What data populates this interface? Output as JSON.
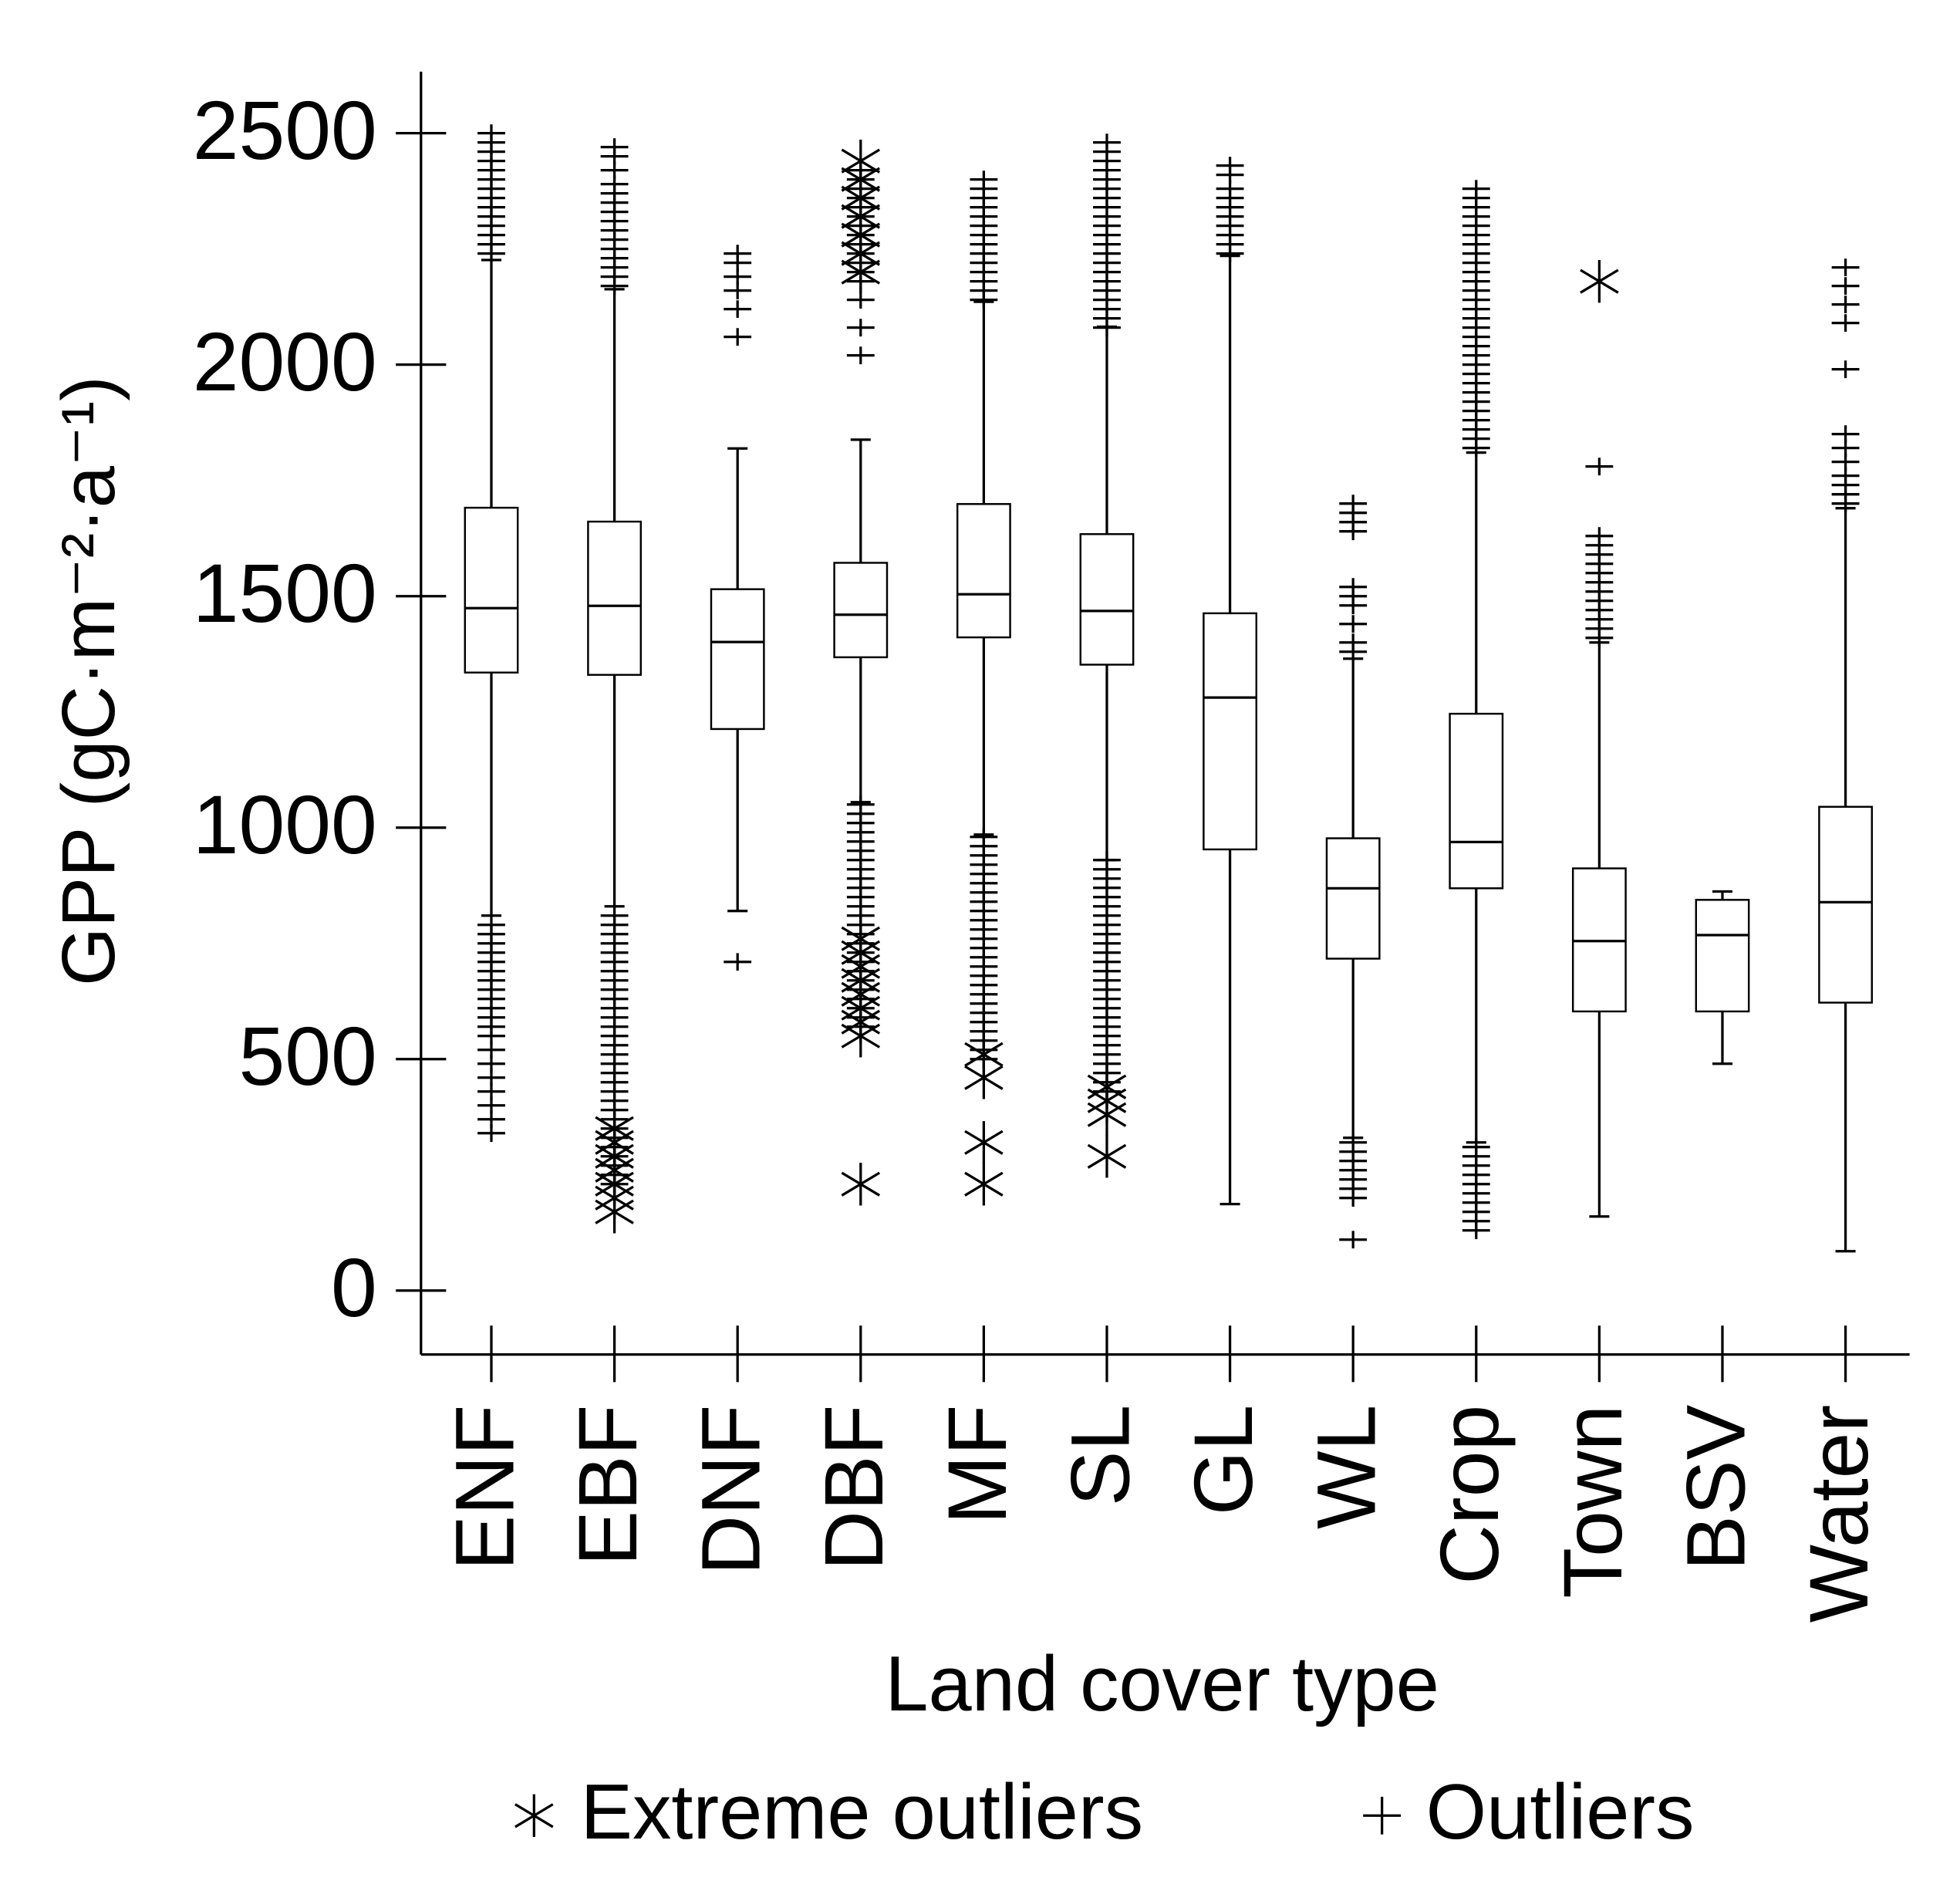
{
  "chart_data": {
    "type": "box",
    "y_label": "GPP (gC·m⁻²·a⁻¹)",
    "x_label": "Land cover type",
    "legend": [
      "Extreme outliers",
      "Outliers"
    ],
    "categories": [
      "ENF",
      "EBF",
      "DNF",
      "DBF",
      "MF",
      "SL",
      "GL",
      "WL",
      "Crop",
      "Town",
      "BSV",
      "Water"
    ],
    "ylim": [
      -138,
      2633
    ],
    "yticks": [
      0,
      500,
      1000,
      1500,
      2000,
      2500
    ],
    "boxes": [
      {
        "low": 810,
        "q1": 1335,
        "median": 1474,
        "q3": 1691,
        "high": 2226,
        "outliers": [
          2240,
          2260,
          2280,
          2300,
          2320,
          2340,
          2360,
          2380,
          2400,
          2420,
          2440,
          2460,
          2480,
          2500,
          340,
          370,
          400,
          430,
          460,
          490,
          520,
          550,
          570,
          590,
          610,
          630,
          650,
          670,
          690,
          710,
          730,
          750,
          770,
          790
        ],
        "extreme_outliers": []
      },
      {
        "low": 830,
        "q1": 1330,
        "median": 1479,
        "q3": 1661,
        "high": 2163,
        "outliers": [
          2170,
          2190,
          2210,
          2230,
          2250,
          2270,
          2290,
          2310,
          2330,
          2350,
          2370,
          2390,
          2420,
          2450,
          2470,
          230,
          250,
          270,
          290,
          310,
          330,
          350,
          370,
          390,
          410,
          430,
          450,
          470,
          490,
          510,
          530,
          550,
          570,
          590,
          610,
          630,
          650,
          670,
          690,
          710,
          730,
          750,
          770,
          790,
          810
        ],
        "extreme_outliers": [
          170,
          200,
          230,
          260,
          290,
          320,
          350
        ]
      },
      {
        "low": 820,
        "q1": 1213,
        "median": 1401,
        "q3": 1515,
        "high": 1819,
        "outliers": [
          2060,
          2120,
          2160,
          2190,
          2220,
          2240,
          710
        ],
        "extreme_outliers": []
      },
      {
        "low": 1055,
        "q1": 1368,
        "median": 1460,
        "q3": 1572,
        "high": 1838,
        "outliers": [
          2020,
          2080,
          2140,
          2180,
          2200,
          2220,
          2240,
          2260,
          2280,
          2300,
          2320,
          2340,
          2360,
          2380,
          2400,
          2420,
          570,
          590,
          610,
          630,
          650,
          670,
          690,
          710,
          730,
          750,
          770,
          790,
          810,
          830,
          850,
          870,
          890,
          910,
          930,
          950,
          970,
          990,
          1010,
          1030,
          1050
        ],
        "extreme_outliers": [
          2200,
          2240,
          2280,
          2320,
          2360,
          2400,
          2440,
          550,
          580,
          610,
          640,
          670,
          700,
          730,
          760,
          230
        ]
      },
      {
        "low": 985,
        "q1": 1411,
        "median": 1504,
        "q3": 1699,
        "high": 2136,
        "outliers": [
          2140,
          2160,
          2180,
          2200,
          2220,
          2240,
          2260,
          2280,
          2300,
          2320,
          2340,
          2360,
          2380,
          2400,
          500,
          520,
          540,
          560,
          580,
          600,
          620,
          640,
          660,
          680,
          700,
          720,
          740,
          760,
          780,
          800,
          820,
          840,
          860,
          880,
          900,
          920,
          940,
          960,
          980
        ],
        "extreme_outliers": [
          230,
          320,
          460,
          510
        ]
      },
      {
        "low": 930,
        "q1": 1352,
        "median": 1468,
        "q3": 1634,
        "high": 2082,
        "outliers": [
          2080,
          2100,
          2120,
          2140,
          2160,
          2180,
          2200,
          2220,
          2240,
          2260,
          2280,
          2300,
          2320,
          2340,
          2360,
          2380,
          2400,
          2420,
          2440,
          2460,
          2480,
          430,
          450,
          470,
          490,
          510,
          530,
          550,
          570,
          590,
          610,
          630,
          650,
          670,
          690,
          710,
          730,
          750,
          770,
          790,
          810,
          830,
          850,
          870,
          890,
          910,
          930
        ],
        "extreme_outliers": [
          290,
          380,
          410,
          440
        ]
      },
      {
        "low": 187,
        "q1": 953,
        "median": 1281,
        "q3": 1463,
        "high": 2235,
        "outliers": [
          2240,
          2260,
          2280,
          2300,
          2320,
          2340,
          2360,
          2380,
          2410,
          2430
        ],
        "extreme_outliers": []
      },
      {
        "low": 330,
        "q1": 717,
        "median": 869,
        "q3": 977,
        "high": 1365,
        "outliers": [
          1380,
          1400,
          1440,
          1480,
          1500,
          1520,
          1640,
          1660,
          1680,
          1700,
          110,
          200,
          220,
          240,
          260,
          280,
          300,
          320
        ],
        "extreme_outliers": []
      },
      {
        "low": 320,
        "q1": 869,
        "median": 969,
        "q3": 1246,
        "high": 1810,
        "outliers": [
          1820,
          1840,
          1860,
          1880,
          1900,
          1920,
          1940,
          1960,
          1980,
          2000,
          2020,
          2040,
          2060,
          2080,
          2100,
          2120,
          2140,
          2160,
          2180,
          2200,
          2220,
          2240,
          2260,
          2280,
          2300,
          2320,
          2340,
          2360,
          2380,
          130,
          150,
          170,
          190,
          210,
          230,
          250,
          270,
          290,
          310
        ],
        "extreme_outliers": []
      },
      {
        "low": 160,
        "q1": 603,
        "median": 755,
        "q3": 912,
        "high": 1400,
        "outliers": [
          1410,
          1430,
          1450,
          1470,
          1490,
          1510,
          1530,
          1550,
          1570,
          1590,
          1610,
          1630,
          1780
        ],
        "extreme_outliers": [
          2180
        ]
      },
      {
        "low": 490,
        "q1": 603,
        "median": 768,
        "q3": 844,
        "high": 862,
        "outliers": [],
        "extreme_outliers": []
      },
      {
        "low": 85,
        "q1": 622,
        "median": 839,
        "q3": 1045,
        "high": 1690,
        "outliers": [
          1700,
          1720,
          1740,
          1760,
          1790,
          1820,
          1850,
          1990,
          2090,
          2130,
          2170,
          2210
        ],
        "extreme_outliers": []
      }
    ]
  }
}
